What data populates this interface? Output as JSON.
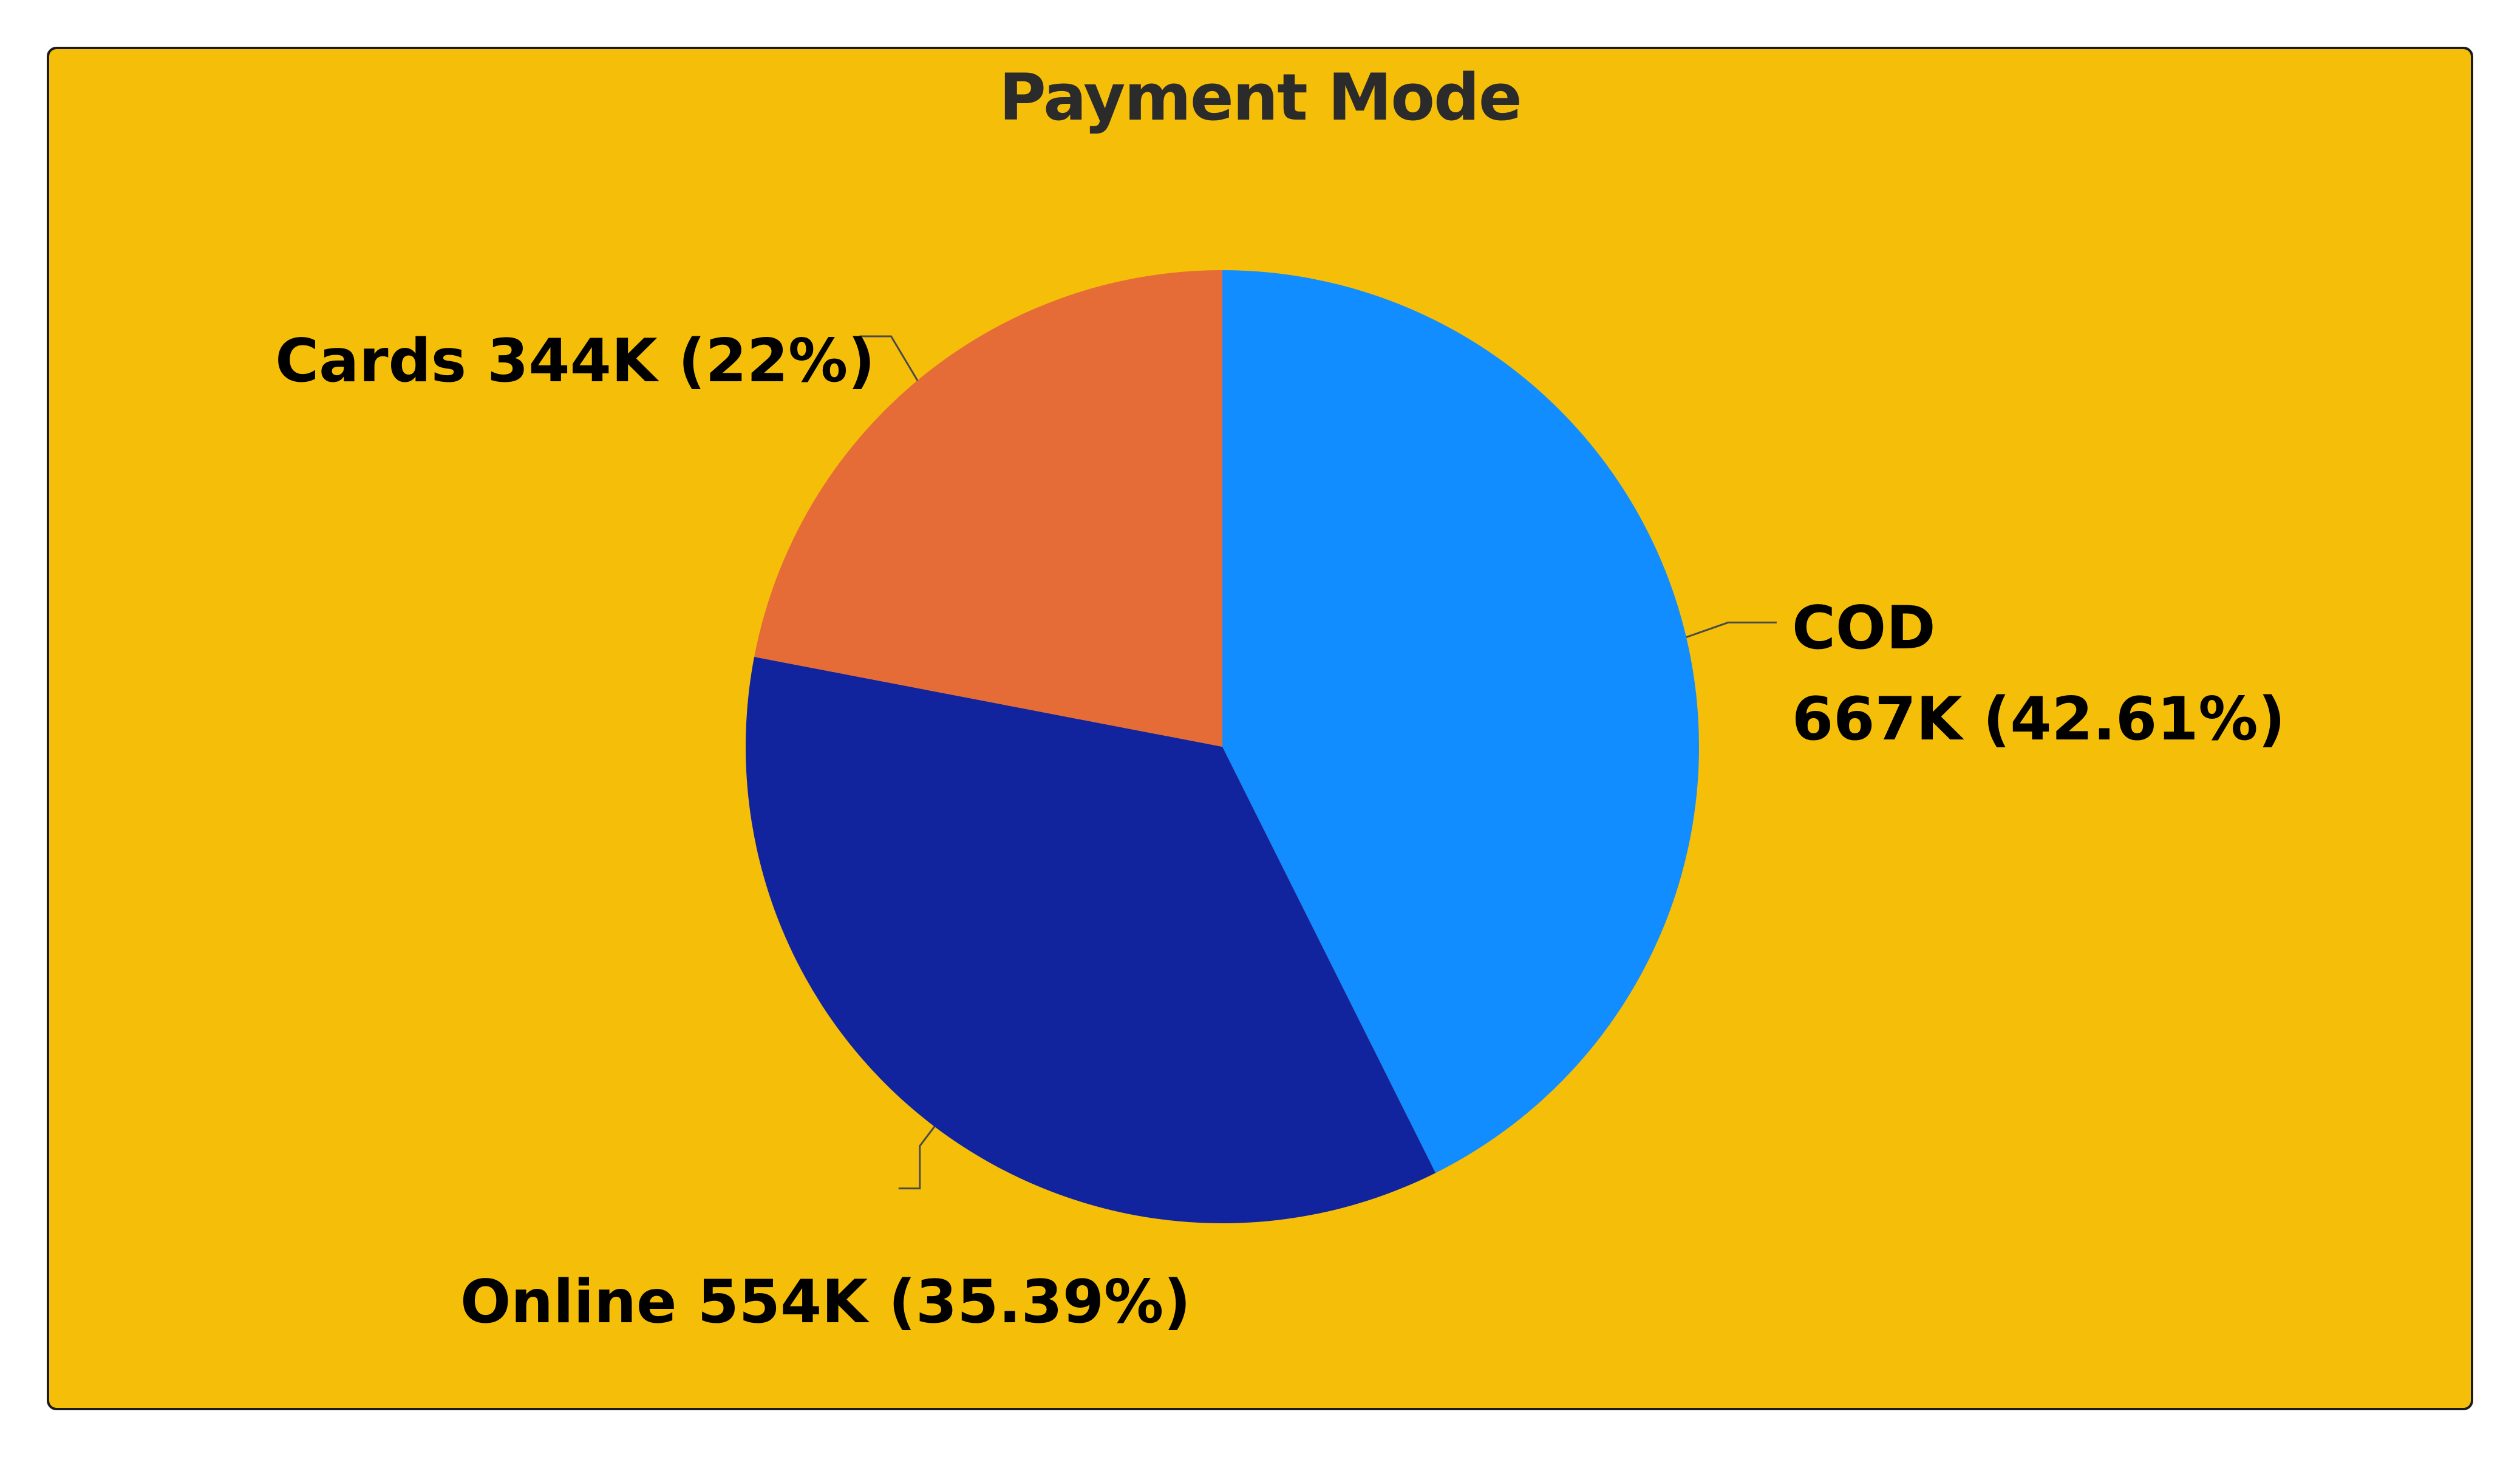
{
  "chart_data": {
    "type": "pie",
    "title": "Payment Mode",
    "start_angle_deg": 0,
    "direction": "clockwise",
    "slices": [
      {
        "name": "COD",
        "value_label": "667K",
        "percent_label": "42.61%",
        "value": 667,
        "percent": 42.61,
        "color": "#118DFF"
      },
      {
        "name": "Online",
        "value_label": "554K",
        "percent_label": "35.39%",
        "value": 554,
        "percent": 35.39,
        "color": "#12239E"
      },
      {
        "name": "Cards",
        "value_label": "344K",
        "percent_label": "22%",
        "value": 344,
        "percent": 22.0,
        "color": "#E66C37"
      }
    ],
    "legend": "none",
    "background_color": "#F5BE09"
  }
}
